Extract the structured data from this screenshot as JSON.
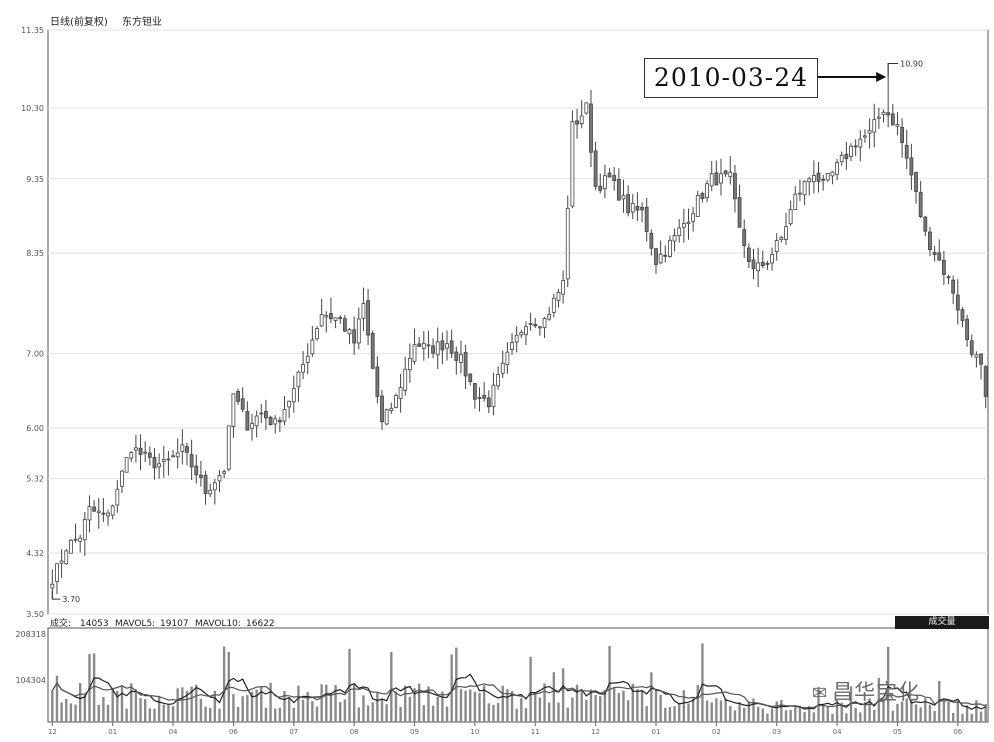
{
  "chart_data": {
    "type": "candlestick",
    "title": "日线(前复权)",
    "instrument": "东方钽业",
    "y_ticks": [
      "3.50",
      "4.32",
      "5.32",
      "6.00",
      "7.00",
      "8.35",
      "9.35",
      "10.30",
      "11.35"
    ],
    "y_tick_values": [
      3.5,
      4.32,
      5.32,
      6.0,
      7.0,
      8.35,
      9.35,
      10.3,
      11.35
    ],
    "ylim": [
      3.5,
      11.35
    ],
    "grid": true,
    "low_annotation": {
      "label": "3.70",
      "value": 3.7
    },
    "high_annotation": {
      "label": "10.90",
      "value": 10.9,
      "date": "2010-03-24"
    },
    "month_ticks": [
      "12",
      "01",
      "04",
      "06",
      "07",
      "08",
      "09",
      "10",
      "11",
      "12",
      "01",
      "02",
      "03",
      "04",
      "05",
      "06"
    ],
    "price_path": [
      [
        0,
        3.95
      ],
      [
        3,
        4.4
      ],
      [
        6,
        4.55
      ],
      [
        8,
        4.9
      ],
      [
        12,
        4.8
      ],
      [
        14,
        5.2
      ],
      [
        17,
        5.75
      ],
      [
        21,
        5.55
      ],
      [
        24,
        5.5
      ],
      [
        28,
        5.7
      ],
      [
        31,
        5.4
      ],
      [
        33,
        5.15
      ],
      [
        37,
        5.45
      ],
      [
        39,
        6.45
      ],
      [
        42,
        6.05
      ],
      [
        45,
        6.2
      ],
      [
        48,
        6.05
      ],
      [
        52,
        6.5
      ],
      [
        56,
        7.2
      ],
      [
        58,
        7.55
      ],
      [
        62,
        7.45
      ],
      [
        65,
        7.15
      ],
      [
        67,
        7.65
      ],
      [
        69,
        6.8
      ],
      [
        71,
        6.05
      ],
      [
        74,
        6.4
      ],
      [
        78,
        7.15
      ],
      [
        81,
        7.05
      ],
      [
        85,
        7.15
      ],
      [
        88,
        6.9
      ],
      [
        91,
        6.45
      ],
      [
        94,
        6.35
      ],
      [
        98,
        6.95
      ],
      [
        102,
        7.45
      ],
      [
        106,
        7.45
      ],
      [
        110,
        7.95
      ],
      [
        112,
        10.05
      ],
      [
        115,
        10.3
      ],
      [
        117,
        9.25
      ],
      [
        120,
        9.35
      ],
      [
        124,
        8.95
      ],
      [
        127,
        8.9
      ],
      [
        130,
        8.25
      ],
      [
        134,
        8.55
      ],
      [
        138,
        8.95
      ],
      [
        142,
        9.35
      ],
      [
        146,
        9.35
      ],
      [
        148,
        8.65
      ],
      [
        151,
        8.1
      ],
      [
        154,
        8.25
      ],
      [
        157,
        8.55
      ],
      [
        160,
        9.1
      ],
      [
        164,
        9.45
      ],
      [
        166,
        9.25
      ],
      [
        169,
        9.5
      ],
      [
        173,
        9.85
      ],
      [
        176,
        9.95
      ],
      [
        179,
        10.3
      ],
      [
        182,
        10.05
      ],
      [
        185,
        9.4
      ],
      [
        188,
        8.6
      ],
      [
        191,
        8.25
      ],
      [
        194,
        7.85
      ],
      [
        197,
        7.2
      ],
      [
        200,
        6.8
      ],
      [
        201,
        6.35
      ]
    ],
    "volume": {
      "label": "成交:",
      "current": "14053",
      "mavol5_label": "MAVOL5:",
      "mavol5": "19107",
      "mavol10_label": "MAVOL10:",
      "mavol10": "16622",
      "y_ticks": [
        "208318",
        "104304"
      ],
      "y_tick_values": [
        208318,
        104304
      ],
      "ylim": [
        0,
        208318
      ],
      "badge": "成交量"
    }
  },
  "watermark": {
    "icon": "wechat-icon",
    "text": "昌华宝化"
  }
}
